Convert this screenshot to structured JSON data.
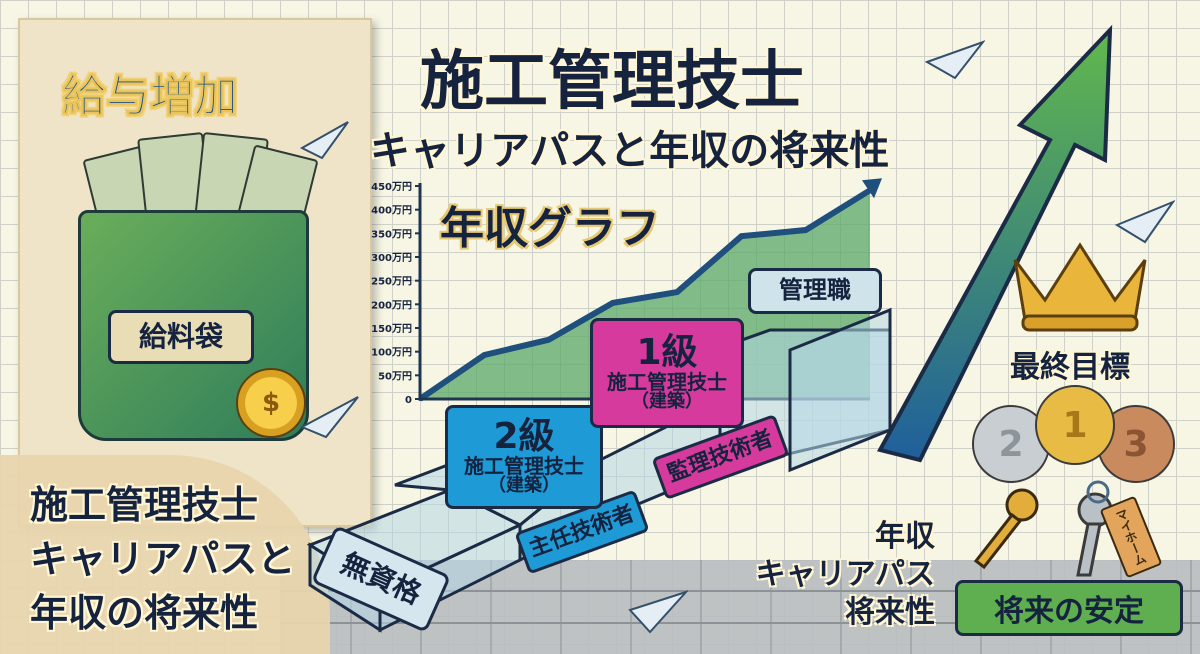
{
  "left_panel": {
    "title": "給与増加",
    "envelope_label": "給料袋",
    "coin_symbol": "$",
    "caption_lines": [
      "施工管理技士",
      "キャリアパスと",
      "年収の将来性"
    ]
  },
  "header": {
    "title": "施工管理技士",
    "subtitle": "キャリアパスと年収の将来性"
  },
  "chart_data": {
    "type": "area",
    "title": "年収グラフ",
    "yticks": [
      "0",
      "50万円",
      "100万円",
      "150万円",
      "200万円",
      "250万円",
      "300万円",
      "350万円",
      "400万円",
      "450万円"
    ],
    "ylim": [
      0,
      450
    ],
    "x": [
      0,
      1,
      2,
      3,
      4,
      5,
      6,
      7
    ],
    "values": [
      0,
      93,
      125,
      203,
      226,
      344,
      357,
      441
    ],
    "grid": true,
    "colors": {
      "line": "#1f4f7d",
      "fill": "#5aa86a"
    }
  },
  "stairs": {
    "step1": "無資格",
    "step2_tag": "主任技術者",
    "grade2": {
      "level": "2級",
      "line1": "施工管理技士",
      "line2": "（建築）",
      "color": "#1e9ad6"
    },
    "step3_tag": "監理技術者",
    "grade1": {
      "level": "1級",
      "line1": "施工管理技士",
      "line2": "（建築）",
      "color": "#d63a9c"
    },
    "top": "管理職"
  },
  "right_panel": {
    "goal_label": "最終目標",
    "medals": [
      "2",
      "1",
      "3"
    ],
    "key_tag": "マイホーム",
    "stability_button": "将来の安定"
  },
  "side_caption": [
    "年収",
    "キャリアパス",
    "将来性"
  ]
}
